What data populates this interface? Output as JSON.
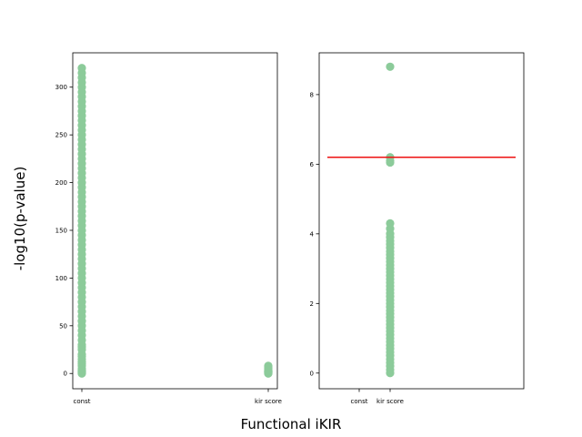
{
  "figure": {
    "xlabel": "Functional iKIR",
    "ylabel": "-log10(p-value)"
  },
  "colors": {
    "points": "#8ccb9a",
    "threshold": "#ee1111"
  },
  "chart_data": [
    {
      "type": "scatter",
      "categories": [
        "const",
        "kir score"
      ],
      "yticks": [
        0,
        50,
        100,
        150,
        200,
        250,
        300
      ],
      "ylim": [
        -16,
        336
      ],
      "series": [
        {
          "category": "const",
          "points": [
            0,
            1,
            2,
            3,
            5,
            8,
            10,
            12,
            15,
            18,
            20,
            25,
            28,
            30,
            35,
            40,
            45,
            50,
            55,
            60,
            65,
            70,
            75,
            80,
            85,
            90,
            95,
            100,
            105,
            110,
            115,
            120,
            125,
            130,
            135,
            140,
            145,
            150,
            155,
            160,
            165,
            170,
            175,
            180,
            185,
            190,
            195,
            200,
            205,
            210,
            215,
            220,
            225,
            230,
            235,
            240,
            245,
            250,
            255,
            260,
            265,
            270,
            275,
            280,
            285,
            290,
            295,
            300,
            305,
            310,
            315,
            320
          ]
        },
        {
          "category": "kir score",
          "points": [
            0,
            0.5,
            1,
            1.5,
            2,
            2.5,
            3,
            4,
            5,
            6,
            7,
            8
          ]
        }
      ],
      "grid": false
    },
    {
      "type": "scatter",
      "categories": [
        "const",
        "kir score"
      ],
      "yticks": [
        0,
        2,
        4,
        6,
        8
      ],
      "ylim": [
        -0.45,
        9.2
      ],
      "series": [
        {
          "category": "kir score",
          "points": [
            0,
            0.1,
            0.2,
            0.3,
            0.4,
            0.5,
            0.6,
            0.7,
            0.8,
            0.9,
            1.0,
            1.1,
            1.2,
            1.3,
            1.4,
            1.5,
            1.6,
            1.7,
            1.8,
            1.9,
            2.0,
            2.1,
            2.2,
            2.3,
            2.4,
            2.5,
            2.6,
            2.7,
            2.8,
            2.9,
            3.0,
            3.1,
            3.2,
            3.3,
            3.4,
            3.5,
            3.6,
            3.7,
            3.8,
            3.9,
            4.0,
            4.15,
            4.3,
            6.05,
            6.1,
            6.2,
            8.8
          ]
        }
      ],
      "threshold": 6.2,
      "grid": false
    }
  ]
}
